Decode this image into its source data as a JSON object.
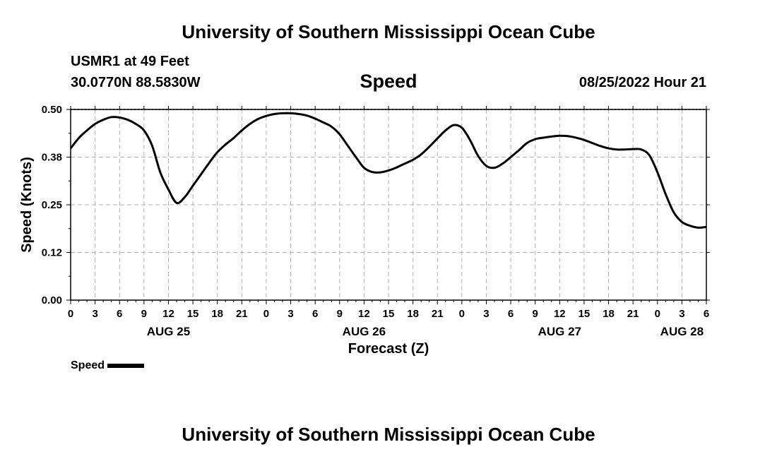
{
  "header": {
    "title": "University of Southern Mississippi Ocean Cube",
    "station": "USMR1 at 49 Feet",
    "coords": "30.0770N  88.5830W",
    "parameter": "Speed",
    "issued": "08/25/2022 Hour 21"
  },
  "footer": {
    "title": "University of Southern Mississippi Ocean Cube"
  },
  "legend": {
    "label": "Speed"
  },
  "chart_data": {
    "type": "line",
    "xlabel": "Forecast (Z)",
    "ylabel": "Speed (Knots)",
    "x_hours_range": [
      0,
      78
    ],
    "ylim": [
      0,
      0.5
    ],
    "yticks": [
      "0.00",
      "0.12",
      "0.25",
      "0.38",
      "0.50"
    ],
    "ytick_values": [
      0,
      0.125,
      0.25,
      0.375,
      0.5
    ],
    "xtick_labels": [
      "0",
      "3",
      "6",
      "9",
      "12",
      "15",
      "18",
      "21",
      "0",
      "3",
      "6",
      "9",
      "12",
      "15",
      "18",
      "21",
      "0",
      "3",
      "6",
      "9",
      "12",
      "15",
      "18",
      "21",
      "0",
      "3",
      "6"
    ],
    "day_labels": [
      {
        "label": "AUG 25",
        "hour": 12
      },
      {
        "label": "AUG 26",
        "hour": 36
      },
      {
        "label": "AUG 27",
        "hour": 60
      },
      {
        "label": "AUG 28",
        "hour": 75
      }
    ],
    "grid": true,
    "series": [
      {
        "name": "Speed",
        "color": "#000000",
        "x": [
          0,
          1,
          2,
          3,
          4,
          5,
          6,
          7,
          8,
          9,
          10,
          11,
          12,
          13,
          14,
          15,
          16,
          17,
          18,
          19,
          20,
          21,
          22,
          23,
          24,
          25,
          26,
          27,
          28,
          29,
          30,
          31,
          32,
          33,
          34,
          35,
          36,
          37,
          38,
          39,
          40,
          41,
          42,
          43,
          44,
          45,
          46,
          47,
          48,
          49,
          50,
          51,
          52,
          53,
          54,
          55,
          56,
          57,
          58,
          59,
          60,
          61,
          62,
          63,
          64,
          65,
          66,
          67,
          68,
          69,
          70,
          71,
          72,
          73,
          74,
          75,
          76,
          77,
          78
        ],
        "values": [
          0.398,
          0.425,
          0.445,
          0.462,
          0.473,
          0.48,
          0.479,
          0.473,
          0.462,
          0.445,
          0.405,
          0.335,
          0.29,
          0.255,
          0.27,
          0.3,
          0.33,
          0.36,
          0.388,
          0.408,
          0.425,
          0.445,
          0.462,
          0.475,
          0.483,
          0.488,
          0.49,
          0.49,
          0.488,
          0.484,
          0.476,
          0.466,
          0.455,
          0.435,
          0.405,
          0.375,
          0.347,
          0.336,
          0.335,
          0.34,
          0.348,
          0.358,
          0.368,
          0.382,
          0.402,
          0.424,
          0.445,
          0.459,
          0.452,
          0.42,
          0.378,
          0.352,
          0.347,
          0.358,
          0.375,
          0.393,
          0.412,
          0.422,
          0.426,
          0.429,
          0.431,
          0.43,
          0.426,
          0.42,
          0.412,
          0.404,
          0.398,
          0.395,
          0.395,
          0.396,
          0.395,
          0.38,
          0.335,
          0.278,
          0.23,
          0.205,
          0.195,
          0.19,
          0.192
        ]
      }
    ]
  }
}
